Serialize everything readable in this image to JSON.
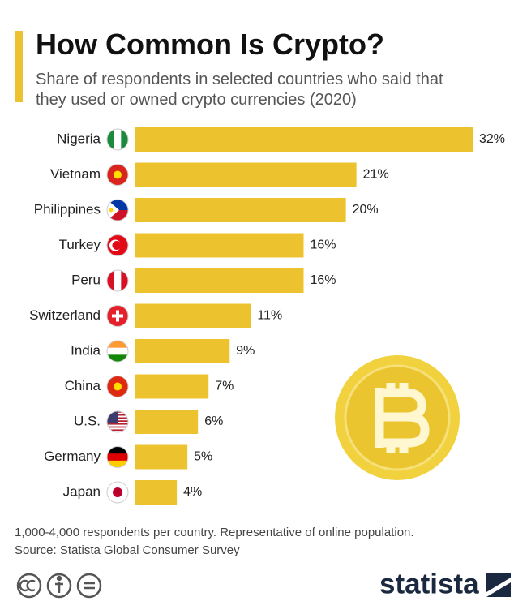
{
  "chart_data": {
    "type": "bar",
    "orientation": "horizontal",
    "title": "How Common Is Crypto?",
    "subtitle": "Share of respondents in selected countries who said that they used or owned crypto currencies (2020)",
    "categories": [
      "Nigeria",
      "Vietnam",
      "Philippines",
      "Turkey",
      "Peru",
      "Switzerland",
      "India",
      "China",
      "U.S.",
      "Germany",
      "Japan"
    ],
    "values": [
      32,
      21,
      20,
      16,
      16,
      11,
      9,
      7,
      6,
      5,
      4
    ],
    "value_labels": [
      "32%",
      "21%",
      "20%",
      "16%",
      "16%",
      "11%",
      "9%",
      "7%",
      "6%",
      "5%",
      "4%"
    ],
    "color": "#ecc32e",
    "notes": [
      "1,000-4,000 respondents per country. Representative of online population.",
      "Source: Statista Global Consumer Survey"
    ],
    "brand": "statista"
  }
}
